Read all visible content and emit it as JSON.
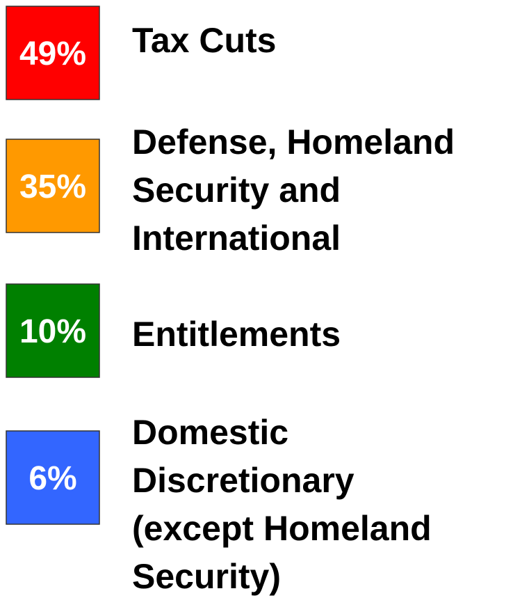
{
  "items": [
    {
      "value_label": "49%",
      "color": "#ff0000",
      "lines": [
        "Tax Cuts"
      ]
    },
    {
      "value_label": "35%",
      "color": "#ff9900",
      "lines": [
        "Defense, Homeland",
        "Security and",
        "International"
      ]
    },
    {
      "value_label": "10%",
      "color": "#008000",
      "lines": [
        "Entitlements"
      ]
    },
    {
      "value_label": "6%",
      "color": "#3366ff",
      "lines": [
        "Domestic",
        "Discretionary",
        "(except Homeland",
        "Security)"
      ]
    }
  ]
}
